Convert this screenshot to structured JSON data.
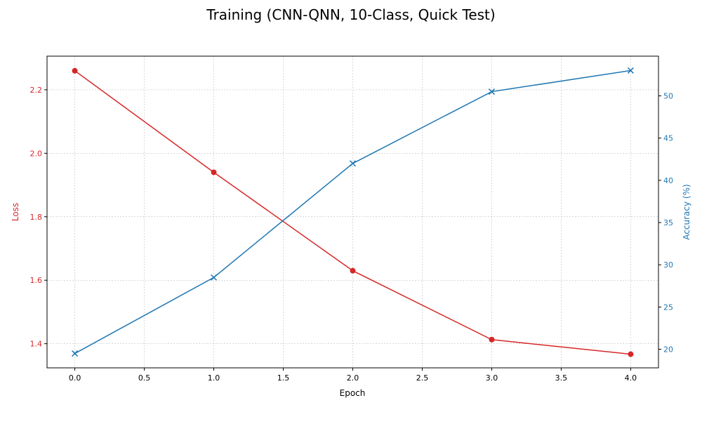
{
  "chart_data": {
    "type": "line",
    "title": "Training (CNN-QNN, 10-Class, Quick Test)",
    "xlabel": "Epoch",
    "ylabel_left": "Loss",
    "ylabel_right": "Accuracy (%)",
    "x": [
      0,
      1,
      2,
      3,
      4
    ],
    "xlim": [
      -0.2,
      4.2
    ],
    "xticks": [
      "0.0",
      "0.5",
      "1.0",
      "1.5",
      "2.0",
      "2.5",
      "3.0",
      "3.5",
      "4.0"
    ],
    "ylim_left": [
      1.324,
      2.306
    ],
    "yticks_left": [
      "1.4",
      "1.6",
      "1.8",
      "2.0",
      "2.2"
    ],
    "ylim_right": [
      17.8,
      54.7
    ],
    "yticks_right": [
      "20",
      "25",
      "30",
      "35",
      "40",
      "45",
      "50"
    ],
    "grid": true,
    "series": [
      {
        "name": "Loss",
        "axis": "left",
        "color": "#d62728",
        "marker": "circle",
        "values": [
          2.26,
          1.94,
          1.63,
          1.413,
          1.367
        ]
      },
      {
        "name": "Accuracy (%)",
        "axis": "right",
        "color": "#1f77b4",
        "marker": "x",
        "values": [
          19.5,
          28.5,
          42.0,
          50.5,
          53.0
        ]
      }
    ]
  }
}
